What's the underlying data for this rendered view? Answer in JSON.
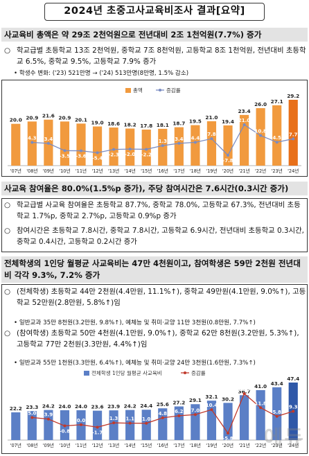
{
  "title": "2024년 초중고사교육비조사 결과[요약]",
  "section1": {
    "header": "사교육비 총액은 약 29조 2천억원으로 전년대비 2조 1천억원(7.7%) 증가",
    "bullet_mark": "○",
    "bullet1": "학교급별 초등학교 13조 2천억원, 중학교 7조 8천억원, 고등학교 8조 1천억원, 전년대비 초등학교 6.5%, 중학교 9.5%, 고등학교 7.9% 증가",
    "sub_mark": "•",
    "sub1": "학생수 변화: ('23) 521만명 → ('24) 513만명(8만명, 1.5% 감소)"
  },
  "section2": {
    "header": "사교육 참여율은 80.0%(1.5%p 증가), 주당 참여시간은 7.6시간(0.3시간 증가)",
    "bullet_mark": "○",
    "bullet1": "학교급별 사교육 참여율은 초등학교 87.7%, 중학교 78.0%, 고등학교 67.3%, 전년대비 초등학교 1.7%p, 중학교 2.7%p, 고등학교 0.9%p 증가",
    "bullet2": "참여시간은 초등학교 7.8시간, 중학교 7.8시간, 고등학교 6.9시간, 전년대비 초등학교 0.3시간, 중학교 0.4시간, 고등학교 0.2시간 증가"
  },
  "section3": {
    "header": "전체학생의 1인당 월평균 사교육비는 47만 4천원이고, 참여학생은 59만 2천원 전년대비 각각 9.3%, 7.2% 증가",
    "bullet_mark": "○",
    "bullet1": "(전체학생) 초등학교 44만 2천원(4.4만원, 11.1%↑), 중학교 49만원(4.1만원, 9.0%↑), 고등학교 52만원(2.8만원, 5.8%↑)임",
    "sub_mark": "•",
    "sub1": "일반교과 35만 8천원(3.2만원, 9.8%↑), 예체능 및 취미·교양 11만 3천원(0.8만원, 7.7%↑)",
    "bullet2": "(참여학생) 초등학교 50만 4천원(4.1만원, 9.0%↑), 중학교 62만 8천원(3.2만원, 5.3%↑), 고등학교 77만 2천원(3.3만원, 4.4%↑)임",
    "sub2": "일반교과 55만 1천원(3.3만원, 6.4%↑), 예체능 및 취미·교양 24만 3천원(1.6만원, 7.3%↑)"
  },
  "watermark": "에듀",
  "colors": {
    "chart1_bar": "#f19a3e",
    "chart1_bar_last": "#e8701a",
    "chart1_line": "#7a8cc2",
    "chart2_bar": "#5b7fc6",
    "chart2_bar_last": "#2f58a8",
    "chart2_line": "#c0392b",
    "header_bg": "#e3e3e3"
  },
  "chart_data": [
    {
      "type": "bar",
      "categories": [
        "'07년",
        "'08년",
        "'09년",
        "'10년",
        "'11년",
        "'12년",
        "'13년",
        "'14년",
        "'15년",
        "'16년",
        "'17년",
        "'18년",
        "'19년",
        "'20년",
        "'21년",
        "'22년",
        "'23년",
        "'24년"
      ],
      "series": [
        {
          "name": "총액",
          "type": "bar",
          "values": [
            20.0,
            20.9,
            21.6,
            20.9,
            20.1,
            19.0,
            18.6,
            18.2,
            17.8,
            18.1,
            18.7,
            19.5,
            21.0,
            19.4,
            23.4,
            26.0,
            27.1,
            29.2
          ]
        },
        {
          "name": "증감률",
          "type": "line",
          "values": [
            null,
            4.3,
            3.4,
            -3.5,
            -3.6,
            -5.4,
            -2.3,
            -2.0,
            -2.2,
            1.3,
            3.4,
            4.4,
            7.8,
            -7.8,
            21.0,
            10.8,
            4.5,
            7.7
          ]
        }
      ],
      "legend": "top-center"
    },
    {
      "type": "bar",
      "title": "전체학생 1인당 월평균 사교육비",
      "categories": [
        "'07년",
        "'08년",
        "'09년",
        "'10년",
        "'11년",
        "'12년",
        "'13년",
        "'14년",
        "'15년",
        "'16년",
        "'17년",
        "'18년",
        "'19년",
        "'20년",
        "'21년",
        "'22년",
        "'23년",
        "'24년"
      ],
      "series": [
        {
          "name": "전체학생 1인당 월평균 사교육비",
          "type": "bar",
          "values": [
            22.2,
            23.3,
            24.2,
            24.0,
            24.0,
            23.6,
            23.9,
            24.2,
            24.4,
            25.6,
            27.2,
            29.1,
            32.1,
            30.2,
            36.7,
            41.0,
            43.4,
            47.4
          ]
        },
        {
          "name": "증감률",
          "type": "line",
          "values": [
            null,
            5.0,
            3.9,
            -0.8,
            0.0,
            -1.7,
            1.3,
            1.1,
            1.0,
            4.8,
            6.2,
            7.0,
            10.4,
            -5.8,
            21.5,
            11.8,
            5.8,
            9.3
          ]
        }
      ],
      "legend": "top-center"
    }
  ]
}
